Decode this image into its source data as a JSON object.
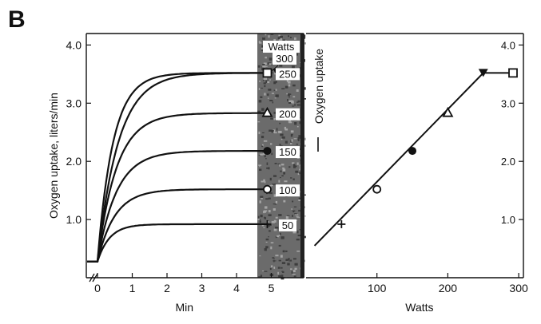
{
  "panel_label": "B",
  "chart_data": [
    {
      "type": "line",
      "xlabel": "Min",
      "ylabel": "Oxygen uptake, liters/min",
      "xlim": [
        -0.3,
        5.5
      ],
      "ylim": [
        0,
        4.2
      ],
      "x_ticks": [
        0,
        1,
        2,
        3,
        4,
        5
      ],
      "y_ticks": [
        1.0,
        2.0,
        3.0,
        4.0
      ],
      "y_tick_labels": [
        "1.0",
        "2.0",
        "3.0",
        "4.0"
      ],
      "baseline": 0.28,
      "legend_title": "Watts",
      "series": [
        {
          "name": "50",
          "marker": "plus",
          "steady_state": 0.92,
          "time_constant": 0.35
        },
        {
          "name": "100",
          "marker": "open-circle",
          "steady_state": 1.52,
          "time_constant": 0.5
        },
        {
          "name": "150",
          "marker": "filled-circle",
          "steady_state": 2.18,
          "time_constant": 0.55
        },
        {
          "name": "200",
          "marker": "open-triangle",
          "steady_state": 2.83,
          "time_constant": 0.55
        },
        {
          "name": "250",
          "marker": "filled-triangle",
          "steady_state": 3.52,
          "time_constant": 0.6
        },
        {
          "name": "300",
          "marker": "open-square",
          "steady_state": 3.52,
          "time_constant": 0.45
        }
      ],
      "extra_labels": [
        "300"
      ]
    },
    {
      "type": "line",
      "xlabel": "Watts",
      "ylabel": "Oxygen uptake",
      "xlim": [
        0,
        320
      ],
      "ylim": [
        0,
        4.2
      ],
      "x_ticks": [
        100,
        200,
        300
      ],
      "y_ticks": [
        1.0,
        2.0,
        3.0,
        4.0
      ],
      "y_tick_labels": [
        "1.0",
        "2.0",
        "3.0",
        "4.0"
      ],
      "line": [
        [
          12,
          0.55
        ],
        [
          250,
          3.52
        ],
        [
          292,
          3.52
        ]
      ],
      "points": [
        {
          "x": 50,
          "y": 0.92,
          "marker": "plus"
        },
        {
          "x": 100,
          "y": 1.52,
          "marker": "open-circle"
        },
        {
          "x": 150,
          "y": 2.18,
          "marker": "filled-circle"
        },
        {
          "x": 200,
          "y": 2.83,
          "marker": "open-triangle"
        },
        {
          "x": 250,
          "y": 3.52,
          "marker": "filled-triangle"
        },
        {
          "x": 292,
          "y": 3.52,
          "marker": "open-square"
        }
      ]
    }
  ]
}
